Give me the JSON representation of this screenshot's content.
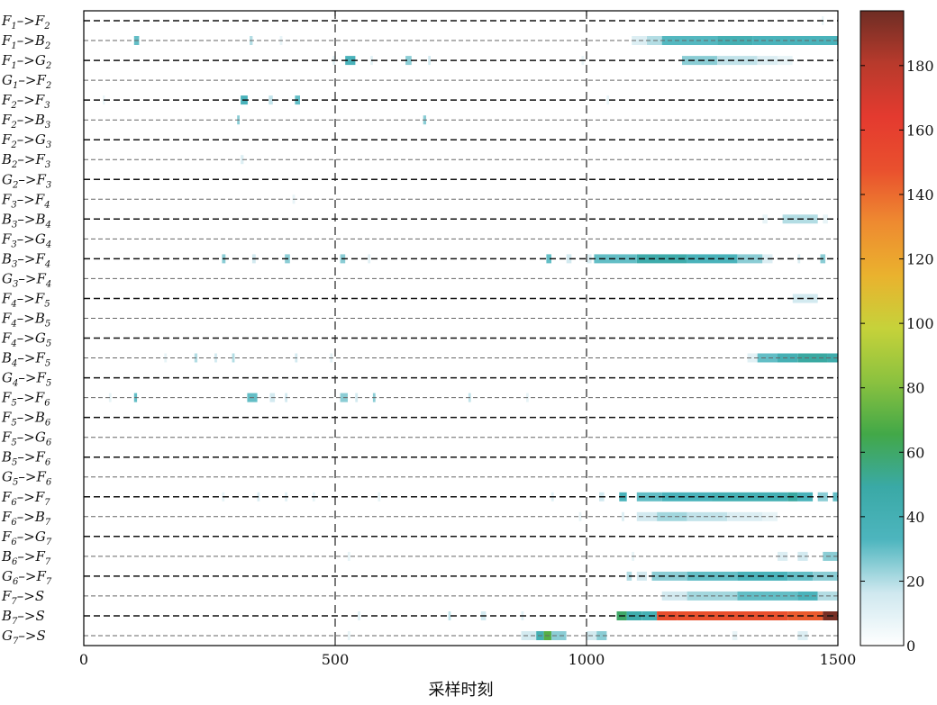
{
  "chart_data": {
    "type": "heatmap",
    "title": "",
    "xlabel": "采样时刻",
    "ylabel": "",
    "xlim": [
      0,
      1500
    ],
    "x_ticks": [
      "0",
      "500",
      "1000",
      "1500"
    ],
    "grid": {
      "vertical_dashed_at": [
        500,
        1000
      ],
      "horizontal_dashed": "every other row"
    },
    "colorbar": {
      "range": [
        0,
        197
      ],
      "ticks": [
        "0",
        "20",
        "40",
        "60",
        "80",
        "100",
        "120",
        "140",
        "160",
        "180"
      ],
      "colormap": [
        "#ffffff",
        "#cfe8ef",
        "#4db5be",
        "#3aa9a6",
        "#42a848",
        "#8cc23f",
        "#c6d23a",
        "#eab22e",
        "#ee8a30",
        "#e9502e",
        "#e43a2f",
        "#b83a2c",
        "#6e2d24"
      ]
    },
    "rows": [
      {
        "from": "F",
        "fs": "1",
        "to": "F",
        "ts": "2",
        "segments": [
          [
            1468,
            1472,
            8
          ]
        ]
      },
      {
        "from": "F",
        "fs": "1",
        "to": "B",
        "ts": "2",
        "segments": [
          [
            100,
            110,
            30
          ],
          [
            330,
            336,
            20
          ],
          [
            390,
            395,
            8
          ],
          [
            1090,
            1120,
            12
          ],
          [
            1120,
            1150,
            20
          ],
          [
            1150,
            1260,
            32
          ],
          [
            1260,
            1330,
            40
          ],
          [
            1330,
            1500,
            35
          ]
        ]
      },
      {
        "from": "F",
        "fs": "1",
        "to": "G",
        "ts": "2",
        "segments": [
          [
            495,
            500,
            10
          ],
          [
            520,
            540,
            35
          ],
          [
            570,
            575,
            10
          ],
          [
            640,
            652,
            25
          ],
          [
            685,
            690,
            15
          ],
          [
            990,
            995,
            8
          ],
          [
            1190,
            1260,
            25
          ],
          [
            1260,
            1340,
            18
          ],
          [
            1340,
            1380,
            12
          ],
          [
            1380,
            1410,
            8
          ]
        ]
      },
      {
        "from": "G",
        "fs": "1",
        "to": "F",
        "ts": "2",
        "segments": []
      },
      {
        "from": "F",
        "fs": "2",
        "to": "F",
        "ts": "3",
        "segments": [
          [
            38,
            42,
            8
          ],
          [
            312,
            326,
            35
          ],
          [
            368,
            376,
            18
          ],
          [
            420,
            430,
            30
          ],
          [
            1040,
            1045,
            8
          ]
        ]
      },
      {
        "from": "F",
        "fs": "2",
        "to": "B",
        "ts": "3",
        "segments": [
          [
            305,
            310,
            25
          ],
          [
            675,
            681,
            25
          ]
        ]
      },
      {
        "from": "F",
        "fs": "2",
        "to": "G",
        "ts": "3",
        "segments": []
      },
      {
        "from": "B",
        "fs": "2",
        "to": "F",
        "ts": "3",
        "segments": [
          [
            312,
            318,
            12
          ]
        ]
      },
      {
        "from": "G",
        "fs": "2",
        "to": "F",
        "ts": "3",
        "segments": []
      },
      {
        "from": "F",
        "fs": "3",
        "to": "F",
        "ts": "4",
        "segments": [
          [
            415,
            420,
            8
          ]
        ]
      },
      {
        "from": "B",
        "fs": "3",
        "to": "B",
        "ts": "4",
        "segments": [
          [
            1350,
            1360,
            8
          ],
          [
            1390,
            1460,
            20
          ],
          [
            1470,
            1480,
            8
          ]
        ]
      },
      {
        "from": "F",
        "fs": "3",
        "to": "G",
        "ts": "4",
        "segments": []
      },
      {
        "from": "B",
        "fs": "3",
        "to": "F",
        "ts": "4",
        "segments": [
          [
            275,
            282,
            25
          ],
          [
            335,
            342,
            15
          ],
          [
            400,
            410,
            25
          ],
          [
            510,
            520,
            25
          ],
          [
            565,
            570,
            10
          ],
          [
            920,
            930,
            30
          ],
          [
            960,
            970,
            15
          ],
          [
            1000,
            1010,
            12
          ],
          [
            1015,
            1100,
            30
          ],
          [
            1100,
            1200,
            45
          ],
          [
            1200,
            1300,
            35
          ],
          [
            1300,
            1350,
            25
          ],
          [
            1350,
            1370,
            12
          ],
          [
            1420,
            1425,
            12
          ],
          [
            1465,
            1475,
            25
          ]
        ]
      },
      {
        "from": "G",
        "fs": "3",
        "to": "F",
        "ts": "4",
        "segments": []
      },
      {
        "from": "F",
        "fs": "4",
        "to": "F",
        "ts": "5",
        "segments": [
          [
            1410,
            1460,
            15
          ]
        ]
      },
      {
        "from": "F",
        "fs": "4",
        "to": "B",
        "ts": "5",
        "segments": []
      },
      {
        "from": "F",
        "fs": "4",
        "to": "G",
        "ts": "5",
        "segments": []
      },
      {
        "from": "B",
        "fs": "4",
        "to": "F",
        "ts": "5",
        "segments": [
          [
            160,
            165,
            8
          ],
          [
            220,
            226,
            20
          ],
          [
            260,
            265,
            15
          ],
          [
            295,
            300,
            20
          ],
          [
            420,
            425,
            15
          ],
          [
            490,
            495,
            10
          ],
          [
            1320,
            1340,
            10
          ],
          [
            1340,
            1380,
            30
          ],
          [
            1380,
            1420,
            40
          ],
          [
            1420,
            1480,
            50
          ],
          [
            1480,
            1500,
            45
          ]
        ]
      },
      {
        "from": "G",
        "fs": "4",
        "to": "F",
        "ts": "5",
        "segments": []
      },
      {
        "from": "F",
        "fs": "5",
        "to": "F",
        "ts": "6",
        "segments": [
          [
            50,
            55,
            8
          ],
          [
            100,
            106,
            30
          ],
          [
            325,
            345,
            30
          ],
          [
            370,
            380,
            15
          ],
          [
            400,
            405,
            15
          ],
          [
            510,
            525,
            25
          ],
          [
            540,
            545,
            15
          ],
          [
            575,
            580,
            25
          ],
          [
            765,
            770,
            18
          ],
          [
            880,
            885,
            8
          ]
        ]
      },
      {
        "from": "F",
        "fs": "5",
        "to": "B",
        "ts": "6",
        "segments": []
      },
      {
        "from": "F",
        "fs": "5",
        "to": "G",
        "ts": "6",
        "segments": []
      },
      {
        "from": "B",
        "fs": "5",
        "to": "F",
        "ts": "6",
        "segments": []
      },
      {
        "from": "G",
        "fs": "5",
        "to": "F",
        "ts": "6",
        "segments": []
      },
      {
        "from": "F",
        "fs": "6",
        "to": "F",
        "ts": "7",
        "segments": [
          [
            275,
            280,
            8
          ],
          [
            345,
            350,
            12
          ],
          [
            400,
            405,
            10
          ],
          [
            455,
            460,
            8
          ],
          [
            585,
            590,
            8
          ],
          [
            930,
            935,
            10
          ],
          [
            1025,
            1035,
            15
          ],
          [
            1065,
            1080,
            35
          ],
          [
            1100,
            1150,
            30
          ],
          [
            1150,
            1250,
            35
          ],
          [
            1250,
            1400,
            40
          ],
          [
            1400,
            1420,
            50
          ],
          [
            1420,
            1450,
            35
          ],
          [
            1460,
            1480,
            25
          ],
          [
            1490,
            1500,
            30
          ]
        ]
      },
      {
        "from": "F",
        "fs": "6",
        "to": "B",
        "ts": "7",
        "segments": [
          [
            985,
            990,
            8
          ],
          [
            1070,
            1075,
            12
          ],
          [
            1100,
            1140,
            15
          ],
          [
            1140,
            1200,
            22
          ],
          [
            1200,
            1280,
            18
          ],
          [
            1280,
            1350,
            12
          ],
          [
            1350,
            1380,
            8
          ]
        ]
      },
      {
        "from": "F",
        "fs": "6",
        "to": "G",
        "ts": "7",
        "segments": []
      },
      {
        "from": "B",
        "fs": "6",
        "to": "F",
        "ts": "7",
        "segments": [
          [
            525,
            530,
            8
          ],
          [
            1090,
            1095,
            8
          ],
          [
            1380,
            1400,
            12
          ],
          [
            1420,
            1440,
            15
          ],
          [
            1470,
            1500,
            25
          ]
        ]
      },
      {
        "from": "G",
        "fs": "6",
        "to": "F",
        "ts": "7",
        "segments": [
          [
            1080,
            1090,
            20
          ],
          [
            1100,
            1120,
            15
          ],
          [
            1130,
            1200,
            25
          ],
          [
            1200,
            1300,
            30
          ],
          [
            1300,
            1400,
            35
          ],
          [
            1400,
            1450,
            30
          ],
          [
            1450,
            1500,
            25
          ]
        ]
      },
      {
        "from": "F",
        "fs": "7",
        "to": "S",
        "ts": "",
        "segments": [
          [
            1150,
            1200,
            15
          ],
          [
            1200,
            1300,
            22
          ],
          [
            1300,
            1420,
            30
          ],
          [
            1420,
            1460,
            35
          ],
          [
            1460,
            1500,
            20
          ]
        ]
      },
      {
        "from": "B",
        "fs": "7",
        "to": "S",
        "ts": "",
        "segments": [
          [
            545,
            550,
            10
          ],
          [
            725,
            730,
            18
          ],
          [
            790,
            800,
            15
          ],
          [
            870,
            875,
            10
          ],
          [
            1060,
            1080,
            60
          ],
          [
            1080,
            1110,
            45
          ],
          [
            1110,
            1140,
            40
          ],
          [
            1140,
            1180,
            150
          ],
          [
            1180,
            1400,
            148
          ],
          [
            1400,
            1470,
            145
          ],
          [
            1470,
            1500,
            195
          ]
        ]
      },
      {
        "from": "G",
        "fs": "7",
        "to": "S",
        "ts": "",
        "segments": [
          [
            525,
            530,
            8
          ],
          [
            870,
            900,
            15
          ],
          [
            900,
            915,
            40
          ],
          [
            915,
            930,
            70
          ],
          [
            930,
            960,
            25
          ],
          [
            1000,
            1020,
            15
          ],
          [
            1020,
            1040,
            25
          ],
          [
            1290,
            1300,
            8
          ],
          [
            1420,
            1440,
            12
          ]
        ]
      }
    ]
  }
}
